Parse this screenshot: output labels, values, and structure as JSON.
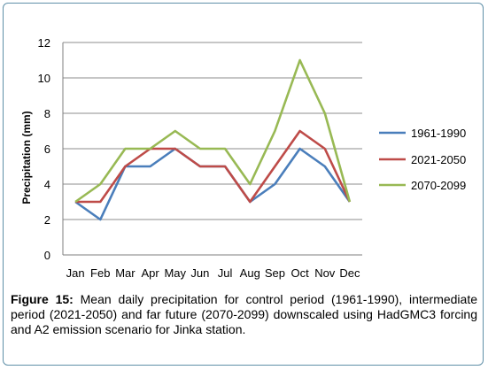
{
  "chart_data": {
    "type": "line",
    "categories": [
      "Jan",
      "Feb",
      "Mar",
      "Apr",
      "May",
      "Jun",
      "Jul",
      "Aug",
      "Sep",
      "Oct",
      "Nov",
      "Dec"
    ],
    "series": [
      {
        "name": "1961-1990",
        "color": "#4a7ebb",
        "values": [
          3,
          2,
          5,
          5,
          6,
          5,
          5,
          3,
          4,
          6,
          5,
          3
        ]
      },
      {
        "name": "2021-2050",
        "color": "#be4b48",
        "values": [
          3,
          3,
          5,
          6,
          6,
          5,
          5,
          3,
          5,
          7,
          6,
          3
        ]
      },
      {
        "name": "2070-2099",
        "color": "#98b954",
        "values": [
          3,
          4,
          6,
          6,
          7,
          6,
          6,
          4,
          7,
          11,
          8,
          3
        ]
      }
    ],
    "ylabel": "Precipitation (mm)",
    "xlabel": "",
    "ylim": [
      0,
      12
    ],
    "yticks": [
      0,
      2,
      4,
      6,
      8,
      10,
      12
    ],
    "grid": true,
    "legend": "right"
  },
  "caption": {
    "label": "Figure 15:",
    "text": " Mean daily precipitation for control period (1961-1990), intermediate period (2021-2050) and far future (2070-2099) downscaled using HadGMC3 forcing and A2 emission scenario for Jinka station."
  }
}
